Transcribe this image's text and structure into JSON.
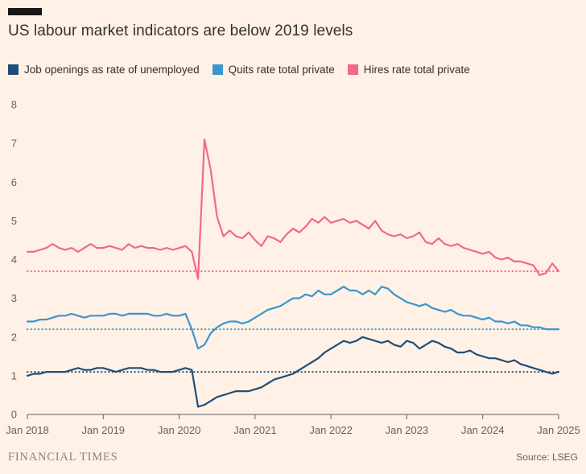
{
  "header": {
    "title": "US labour market indicators are below 2019 levels"
  },
  "legend": [
    {
      "id": "job-openings",
      "label": "Job openings as rate of unemployed",
      "color": "#1F4E79"
    },
    {
      "id": "quits",
      "label": "Quits rate total private",
      "color": "#3A96CE"
    },
    {
      "id": "hires",
      "label": "Hires rate total private",
      "color": "#F2688C"
    }
  ],
  "footer": {
    "brand": "FINANCIAL TIMES",
    "source": "Source: LSEG"
  },
  "chart_data": {
    "type": "line",
    "title": "US labour market indicators are below 2019 levels",
    "x_unit": "month",
    "x_start": "Jan 2018",
    "x_end": "Jan 2025",
    "ylim": [
      0,
      8
    ],
    "y_ticks": [
      0,
      1,
      2,
      3,
      4,
      5,
      6,
      7,
      8
    ],
    "grid": "off",
    "legend_position": "top",
    "x_ticks": [
      {
        "month": 0,
        "label": "Jan 2018"
      },
      {
        "month": 12,
        "label": "Jan 2019"
      },
      {
        "month": 24,
        "label": "Jan 2020"
      },
      {
        "month": 36,
        "label": "Jan 2021"
      },
      {
        "month": 48,
        "label": "Jan 2022"
      },
      {
        "month": 60,
        "label": "Jan 2023"
      },
      {
        "month": 72,
        "label": "Jan 2024"
      },
      {
        "month": 84,
        "label": "Jan 2025"
      }
    ],
    "reference_lines": [
      {
        "id": "hires-2019-level",
        "value": 3.7,
        "color": "#F2688C",
        "style": "dotted"
      },
      {
        "id": "quits-2019-level",
        "value": 2.2,
        "color": "#3A96CE",
        "style": "dotted"
      },
      {
        "id": "job-openings-2019-level",
        "value": 1.1,
        "color": "#1F4E79",
        "style": "dotted"
      }
    ],
    "series": [
      {
        "id": "job-openings",
        "name": "Job openings as rate of unemployed",
        "color": "#1F4E79",
        "values": [
          1.0,
          1.05,
          1.05,
          1.1,
          1.1,
          1.1,
          1.1,
          1.15,
          1.2,
          1.15,
          1.15,
          1.2,
          1.2,
          1.15,
          1.1,
          1.15,
          1.2,
          1.2,
          1.2,
          1.15,
          1.15,
          1.1,
          1.1,
          1.1,
          1.15,
          1.2,
          1.15,
          0.2,
          0.25,
          0.35,
          0.45,
          0.5,
          0.55,
          0.6,
          0.6,
          0.6,
          0.65,
          0.7,
          0.8,
          0.9,
          0.95,
          1.0,
          1.05,
          1.15,
          1.25,
          1.35,
          1.45,
          1.6,
          1.7,
          1.8,
          1.9,
          1.85,
          1.9,
          2.0,
          1.95,
          1.9,
          1.85,
          1.9,
          1.8,
          1.75,
          1.9,
          1.85,
          1.7,
          1.8,
          1.9,
          1.85,
          1.75,
          1.7,
          1.6,
          1.6,
          1.65,
          1.55,
          1.5,
          1.45,
          1.45,
          1.4,
          1.35,
          1.4,
          1.3,
          1.25,
          1.2,
          1.15,
          1.1,
          1.05,
          1.1
        ]
      },
      {
        "id": "quits",
        "name": "Quits rate total private",
        "color": "#3A96CE",
        "values": [
          2.4,
          2.4,
          2.45,
          2.45,
          2.5,
          2.55,
          2.55,
          2.6,
          2.55,
          2.5,
          2.55,
          2.55,
          2.55,
          2.6,
          2.6,
          2.55,
          2.6,
          2.6,
          2.6,
          2.6,
          2.55,
          2.55,
          2.6,
          2.55,
          2.55,
          2.6,
          2.2,
          1.7,
          1.8,
          2.1,
          2.25,
          2.35,
          2.4,
          2.4,
          2.35,
          2.4,
          2.5,
          2.6,
          2.7,
          2.75,
          2.8,
          2.9,
          3.0,
          3.0,
          3.1,
          3.05,
          3.2,
          3.1,
          3.1,
          3.2,
          3.3,
          3.2,
          3.2,
          3.1,
          3.2,
          3.1,
          3.3,
          3.25,
          3.1,
          3.0,
          2.9,
          2.85,
          2.8,
          2.85,
          2.75,
          2.7,
          2.65,
          2.7,
          2.6,
          2.55,
          2.55,
          2.5,
          2.45,
          2.5,
          2.4,
          2.4,
          2.35,
          2.4,
          2.3,
          2.3,
          2.25,
          2.25,
          2.2,
          2.2,
          2.2
        ]
      },
      {
        "id": "hires",
        "name": "Hires rate total private",
        "color": "#F2688C",
        "values": [
          4.2,
          4.2,
          4.25,
          4.3,
          4.4,
          4.3,
          4.25,
          4.3,
          4.2,
          4.3,
          4.4,
          4.3,
          4.3,
          4.35,
          4.3,
          4.25,
          4.4,
          4.3,
          4.35,
          4.3,
          4.3,
          4.25,
          4.3,
          4.25,
          4.3,
          4.35,
          4.2,
          3.5,
          7.1,
          6.3,
          5.1,
          4.6,
          4.75,
          4.6,
          4.55,
          4.7,
          4.5,
          4.35,
          4.6,
          4.55,
          4.45,
          4.65,
          4.8,
          4.7,
          4.85,
          5.05,
          4.95,
          5.1,
          4.95,
          5.0,
          5.05,
          4.95,
          5.0,
          4.9,
          4.8,
          5.0,
          4.75,
          4.65,
          4.6,
          4.65,
          4.55,
          4.6,
          4.7,
          4.45,
          4.4,
          4.55,
          4.4,
          4.35,
          4.4,
          4.3,
          4.25,
          4.2,
          4.15,
          4.2,
          4.05,
          4.0,
          4.05,
          3.95,
          3.95,
          3.9,
          3.85,
          3.6,
          3.65,
          3.9,
          3.7
        ]
      }
    ]
  }
}
